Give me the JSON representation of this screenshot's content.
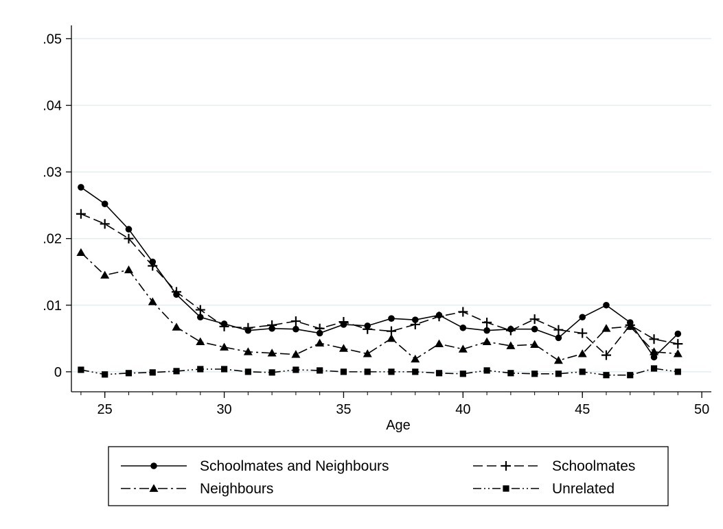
{
  "chart_data": {
    "type": "line",
    "title": "",
    "xlabel": "Age",
    "ylabel": "",
    "xlim": [
      23.6,
      50.4
    ],
    "ylim": [
      -0.003,
      0.052
    ],
    "x_ticks": [
      25,
      30,
      35,
      40,
      45,
      50
    ],
    "y_ticks": [
      0,
      0.01,
      0.02,
      0.03,
      0.04,
      0.05
    ],
    "y_tick_labels": [
      "0",
      ".01",
      ".02",
      ".03",
      ".04",
      ".05"
    ],
    "grid": true,
    "legend_position": "bottom",
    "x": [
      24,
      25,
      26,
      27,
      28,
      29,
      30,
      31,
      32,
      33,
      34,
      35,
      36,
      37,
      38,
      39,
      40,
      41,
      42,
      43,
      44,
      45,
      46,
      47,
      48,
      49
    ],
    "series": [
      {
        "name": "Schoolmates and Neighbours",
        "marker": "circle",
        "dash": "solid",
        "values": [
          0.0277,
          0.0252,
          0.0214,
          0.0165,
          0.0116,
          0.0082,
          0.0072,
          0.0062,
          0.0065,
          0.0064,
          0.0058,
          0.0071,
          0.0069,
          0.008,
          0.0078,
          0.0085,
          0.0066,
          0.0062,
          0.0064,
          0.0064,
          0.0051,
          0.0082,
          0.01,
          0.0074,
          0.0022,
          0.0057
        ]
      },
      {
        "name": "Schoolmates",
        "marker": "plus",
        "dash": "dash",
        "values": [
          0.0237,
          0.0222,
          0.02,
          0.0159,
          0.012,
          0.0093,
          0.0068,
          0.0066,
          0.007,
          0.0076,
          0.0065,
          0.0075,
          0.0064,
          0.0061,
          0.0071,
          0.0083,
          0.009,
          0.0074,
          0.0062,
          0.0079,
          0.0063,
          0.0058,
          0.0025,
          0.007,
          0.0049,
          0.0042
        ]
      },
      {
        "name": "Neighbours",
        "marker": "triangle",
        "dash": "dashdot",
        "values": [
          0.0179,
          0.0145,
          0.0153,
          0.0105,
          0.0067,
          0.0045,
          0.0037,
          0.003,
          0.0028,
          0.0026,
          0.0043,
          0.0035,
          0.0027,
          0.005,
          0.0019,
          0.0042,
          0.0034,
          0.0045,
          0.0039,
          0.0041,
          0.0017,
          0.0027,
          0.0065,
          0.0068,
          0.003,
          0.0027
        ]
      },
      {
        "name": "Unrelated",
        "marker": "square",
        "dash": "dashdotdot",
        "values": [
          0.0003,
          -0.0004,
          -0.0002,
          -0.0001,
          0.0001,
          0.0004,
          0.0004,
          0.0,
          -0.0001,
          0.0003,
          0.0002,
          0.0,
          0.0,
          0.0,
          0.0,
          -0.0002,
          -0.0003,
          0.0002,
          -0.0002,
          -0.0003,
          -0.0003,
          0.0,
          -0.0005,
          -0.0005,
          0.0005,
          0.0
        ]
      }
    ],
    "colors": {
      "line": "#000000",
      "grid": "#e3edf0",
      "background": "#ffffff"
    }
  }
}
